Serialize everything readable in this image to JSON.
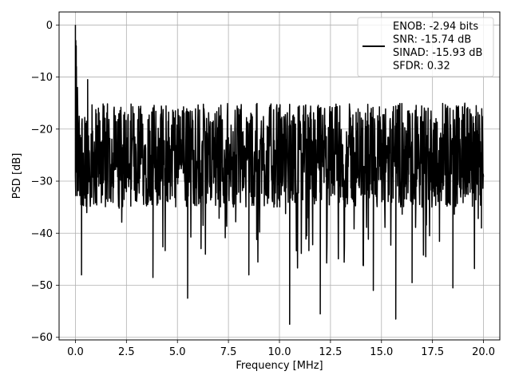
{
  "chart_data": {
    "type": "line",
    "xlabel": "Frequency [MHz]",
    "ylabel": "PSD [dB]",
    "xlim": [
      -0.8,
      20.8
    ],
    "ylim": [
      -60.5,
      2.5
    ],
    "xticks": [
      0.0,
      2.5,
      5.0,
      7.5,
      10.0,
      12.5,
      15.0,
      17.5,
      20.0
    ],
    "xtick_labels": [
      "0.0",
      "2.5",
      "5.0",
      "7.5",
      "10.0",
      "12.5",
      "15.0",
      "17.5",
      "20.0"
    ],
    "yticks": [
      0,
      -10,
      -20,
      -30,
      -40,
      -50,
      -60
    ],
    "ytick_labels": [
      "0",
      "−10",
      "−20",
      "−30",
      "−40",
      "−50",
      "−60"
    ],
    "grid": true,
    "legend_position": "top-right",
    "series": [
      {
        "name": "ENOB: -2.94 bits\nSNR: -15.74 dB\nSINAD: -15.93 dB\nSFDR: 0.32",
        "color": "#000000",
        "x_range": [
          0.0,
          20.0
        ],
        "peak": {
          "x": 0.0,
          "y": 0.0
        },
        "noise_floor_mean": -25,
        "noise_upper_envelope": -15,
        "notable_points": [
          {
            "x": 0.04,
            "y": -4
          },
          {
            "x": 0.1,
            "y": -12
          },
          {
            "x": 0.3,
            "y": -48
          },
          {
            "x": 0.6,
            "y": -10.5
          },
          {
            "x": 3.8,
            "y": -48.5
          },
          {
            "x": 5.5,
            "y": -52.5
          },
          {
            "x": 8.5,
            "y": -48
          },
          {
            "x": 10.5,
            "y": -57.5
          },
          {
            "x": 12.0,
            "y": -55.5
          },
          {
            "x": 14.6,
            "y": -51
          },
          {
            "x": 15.7,
            "y": -56.5
          },
          {
            "x": 16.5,
            "y": -49.5
          },
          {
            "x": 18.5,
            "y": -50.5
          },
          {
            "x": 19.9,
            "y": -39
          }
        ]
      }
    ],
    "legend_lines": [
      "ENOB: -2.94 bits",
      "SNR: -15.74 dB",
      "SINAD: -15.93 dB",
      "SFDR: 0.32"
    ]
  }
}
